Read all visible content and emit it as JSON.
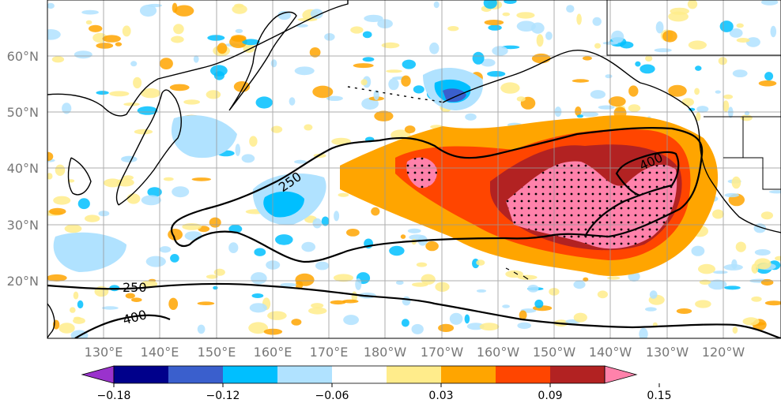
{
  "map": {
    "lat_labels": [
      "60°N",
      "50°N",
      "40°N",
      "30°N",
      "20°N"
    ],
    "lon_labels": [
      "130°E",
      "140°E",
      "150°E",
      "160°E",
      "170°E",
      "180°W",
      "170°W",
      "160°W",
      "150°W",
      "140°W",
      "130°W",
      "120°W"
    ],
    "contour_labels": [
      {
        "text": "250",
        "id": "contour-label-250-north"
      },
      {
        "text": "250",
        "id": "contour-label-250-south"
      },
      {
        "text": "400",
        "id": "contour-label-400-south"
      },
      {
        "text": "400",
        "id": "contour-label-400-east"
      }
    ]
  },
  "colorbar": {
    "colors": [
      "#9a32cd",
      "#00008b",
      "#3a5fcd",
      "#00bfff",
      "#b0e2ff",
      "#ffffff",
      "#ffec8b",
      "#ffa500",
      "#ff4500",
      "#b22222",
      "#ff82ab"
    ],
    "tick_labels": [
      "−0.18",
      "−0.12",
      "−0.06",
      "0.03",
      "0.09",
      "0.15"
    ]
  }
}
